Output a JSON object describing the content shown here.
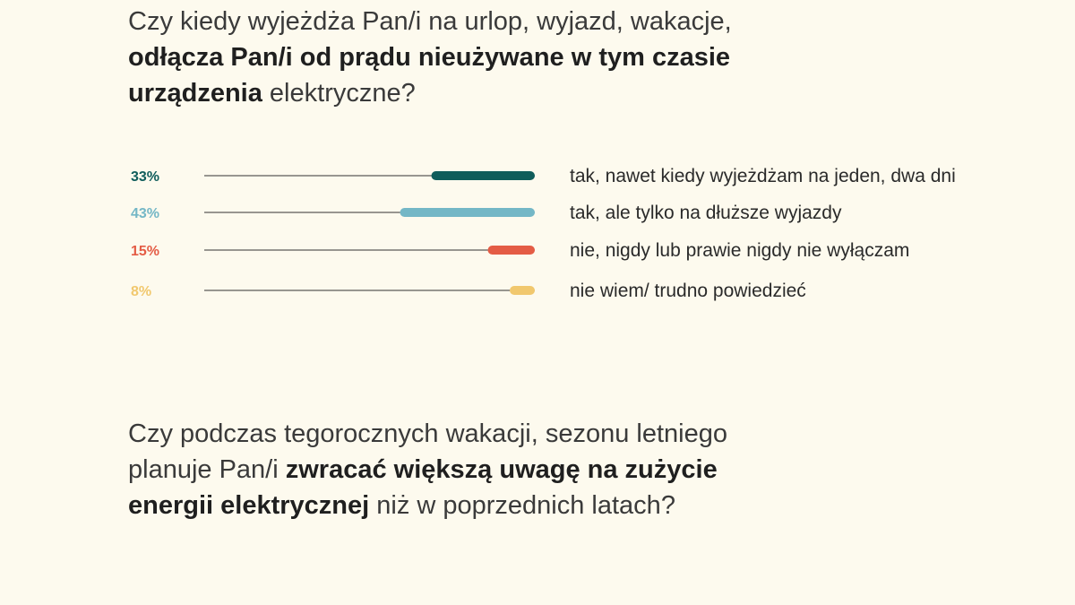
{
  "question1": {
    "part1": "Czy kiedy wyjeżdża Pan/i na urlop, wyjazd, wakacje,",
    "bold1": "odłącza Pan/i od prądu nieużywane w tym czasie",
    "bold2": "urządzenia",
    "part2": " elektryczne?"
  },
  "question2": {
    "part1": "Czy podczas tegorocznych wakacji, sezonu letniego",
    "part2": "planuje Pan/i ",
    "bold1": "zwracać większą uwagę na zużycie",
    "bold2": "energii elektrycznej",
    "part3": " niż w poprzednich latach?"
  },
  "chart_data": {
    "type": "bar",
    "orientation": "horizontal",
    "categories": [
      "tak, nawet kiedy wyjeżdżam na jeden, dwa dni",
      "tak, ale tylko na dłuższe wyjazdy",
      "nie, nigdy lub prawie nigdy nie wyłączam",
      "nie wiem/ trudno powiedzieć"
    ],
    "values": [
      33,
      43,
      15,
      8
    ],
    "value_labels": [
      "33%",
      "43%",
      "15%",
      "8%"
    ],
    "colors": [
      "#0f5d5b",
      "#74b7c6",
      "#e45c45",
      "#f1c86e"
    ],
    "xlim": [
      0,
      100
    ],
    "grid": false,
    "legend": "none"
  }
}
